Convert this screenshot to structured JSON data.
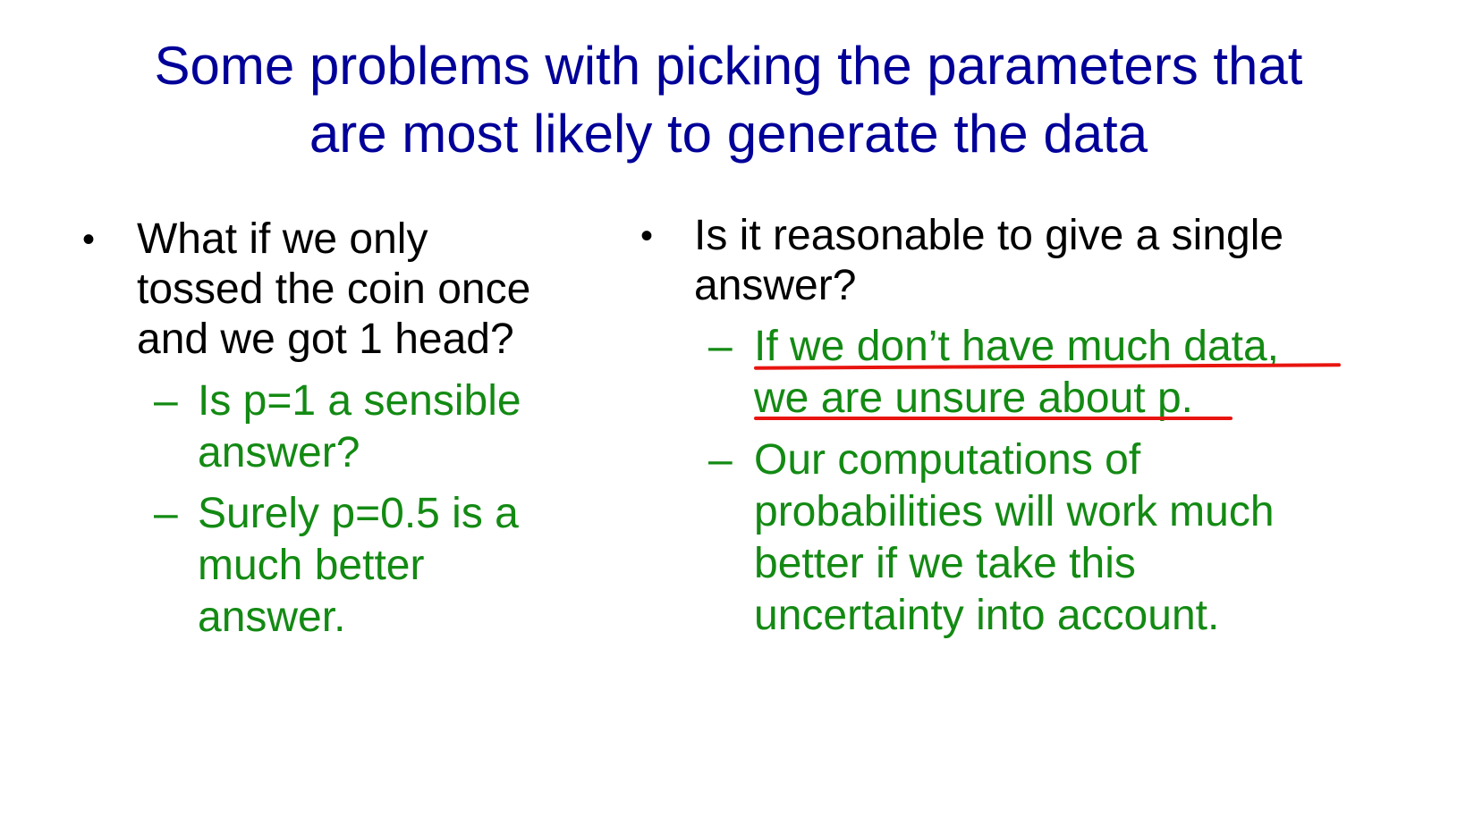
{
  "title": {
    "line1": "Some problems with picking the parameters that",
    "line2": "are most likely to generate the data"
  },
  "left": {
    "bullet_lines": [
      "What if we only",
      "tossed the coin once",
      "and we got 1 head?"
    ],
    "sub1_lines": [
      "Is p=1 a sensible",
      "answer?"
    ],
    "sub2_lines": [
      "Surely p=0.5 is a",
      "much better",
      "answer."
    ]
  },
  "right": {
    "bullet_lines": [
      "Is it reasonable to give a single",
      "answer?"
    ],
    "sub1_lines": [
      "If we don’t have much data,",
      "we are unsure about p."
    ],
    "sub2_lines": [
      " Our computations of",
      "probabilities will work much",
      "better if we take this",
      "uncertainty into account."
    ]
  },
  "symbols": {
    "bullet": "•",
    "dash": "–"
  },
  "colors": {
    "title": "#000099",
    "body": "#000000",
    "sub": "#138a13",
    "underline": "#e8140f"
  }
}
